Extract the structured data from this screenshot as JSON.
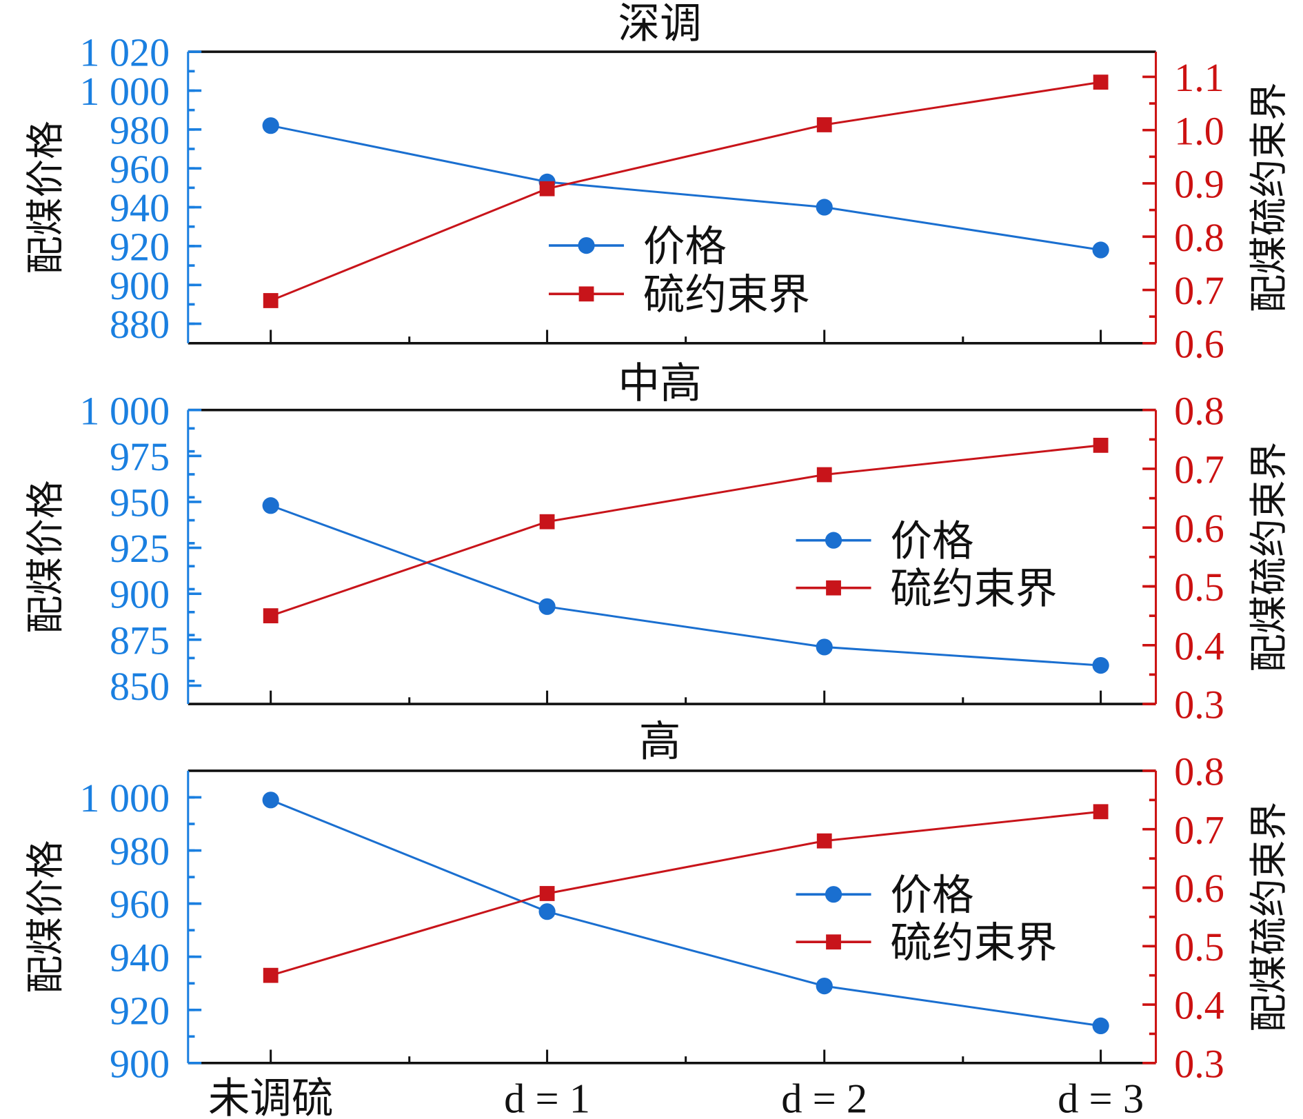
{
  "chart_data": [
    {
      "type": "line",
      "title": "深调",
      "categories": [
        "未调硫",
        "d = 1",
        "d = 2",
        "d = 3"
      ],
      "ylabel_left": "配煤价格",
      "ylabel_right": "配煤硫约束界",
      "ylim_left": [
        870,
        1020
      ],
      "yticks_left": [
        "880",
        "900",
        "920",
        "940",
        "960",
        "980",
        "1 000",
        "1 020"
      ],
      "ytick_values_left": [
        880,
        900,
        920,
        940,
        960,
        980,
        1000,
        1020
      ],
      "ylim_right": [
        0.6,
        1.147
      ],
      "yticks_right": [
        "0.6",
        "0.7",
        "0.8",
        "0.9",
        "1.0",
        "1.1"
      ],
      "ytick_values_right": [
        0.6,
        0.7,
        0.8,
        0.9,
        1.0,
        1.1
      ],
      "series": [
        {
          "name": "价格",
          "axis": "left",
          "marker": "circle",
          "values": [
            982,
            953,
            940,
            918
          ]
        },
        {
          "name": "硫约束界",
          "axis": "right",
          "marker": "square",
          "values": [
            0.68,
            0.89,
            1.01,
            1.09
          ]
        }
      ],
      "legend": "center"
    },
    {
      "type": "line",
      "title": "中高",
      "categories": [
        "未调硫",
        "d = 1",
        "d = 2",
        "d = 3"
      ],
      "ylabel_left": "配煤价格",
      "ylabel_right": "配煤硫约束界",
      "ylim_left": [
        840,
        1000
      ],
      "yticks_left": [
        "850",
        "875",
        "900",
        "925",
        "950",
        "975",
        "1 000"
      ],
      "ytick_values_left": [
        850,
        875,
        900,
        925,
        950,
        975,
        1000
      ],
      "ylim_right": [
        0.3,
        0.8
      ],
      "yticks_right": [
        "0.3",
        "0.4",
        "0.5",
        "0.6",
        "0.7",
        "0.8"
      ],
      "ytick_values_right": [
        0.3,
        0.4,
        0.5,
        0.6,
        0.7,
        0.8
      ],
      "series": [
        {
          "name": "价格",
          "axis": "left",
          "marker": "circle",
          "values": [
            948,
            893,
            871,
            861
          ]
        },
        {
          "name": "硫约束界",
          "axis": "right",
          "marker": "square",
          "values": [
            0.45,
            0.61,
            0.69,
            0.74
          ]
        }
      ],
      "legend": "center-right"
    },
    {
      "type": "line",
      "title": "高",
      "categories": [
        "未调硫",
        "d = 1",
        "d = 2",
        "d = 3"
      ],
      "ylabel_left": "配煤价格",
      "ylabel_right": "配煤硫约束界",
      "ylim_left": [
        900,
        1010
      ],
      "yticks_left": [
        "900",
        "920",
        "940",
        "960",
        "980",
        "1 000"
      ],
      "ytick_values_left": [
        900,
        920,
        940,
        960,
        980,
        1000
      ],
      "ylim_right": [
        0.3,
        0.8
      ],
      "yticks_right": [
        "0.3",
        "0.4",
        "0.5",
        "0.6",
        "0.7",
        "0.8"
      ],
      "ytick_values_right": [
        0.3,
        0.4,
        0.5,
        0.6,
        0.7,
        0.8
      ],
      "series": [
        {
          "name": "价格",
          "axis": "left",
          "marker": "circle",
          "values": [
            999,
            957,
            929,
            914
          ]
        },
        {
          "name": "硫约束界",
          "axis": "right",
          "marker": "square",
          "values": [
            0.45,
            0.59,
            0.68,
            0.73
          ]
        }
      ],
      "legend": "center-right"
    }
  ],
  "colors": {
    "price": "#1a6fd0",
    "sulfur": "#c8141a",
    "left_axis": "#1a7fe0",
    "right_axis": "#cc1111",
    "frame": "#111111"
  }
}
